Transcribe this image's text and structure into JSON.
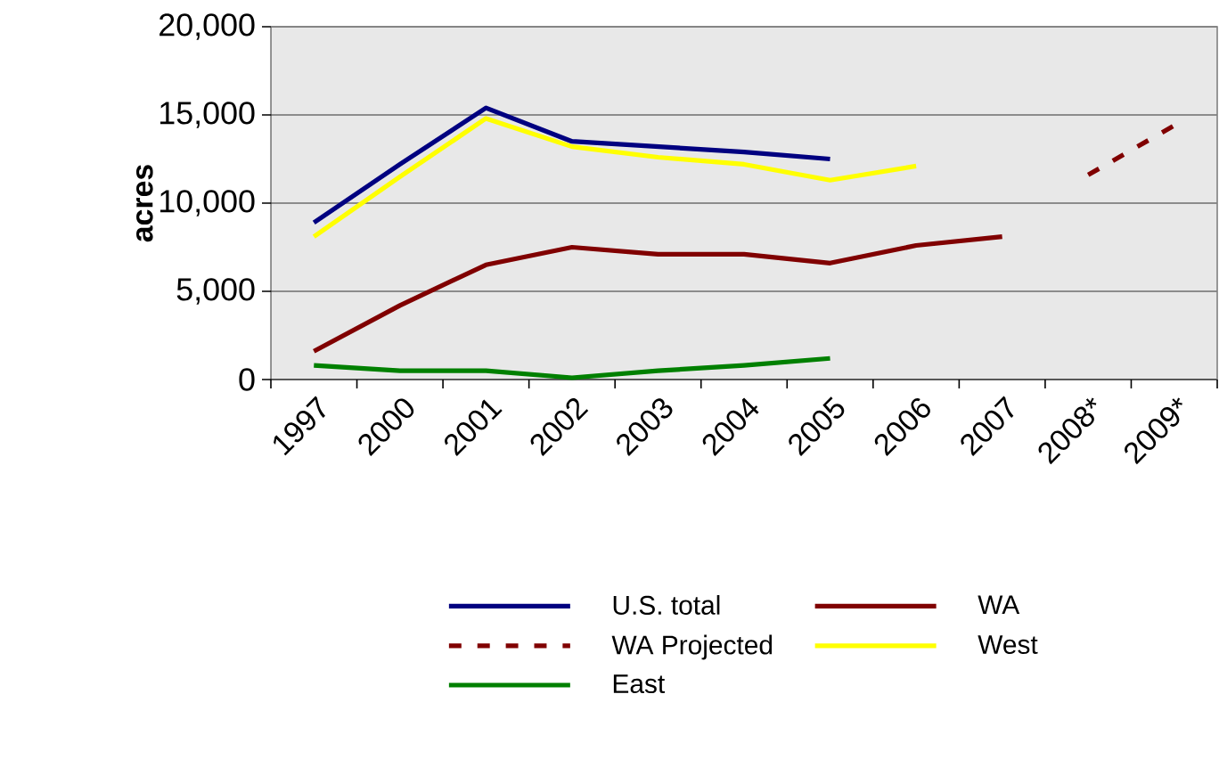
{
  "chart_data": {
    "type": "line",
    "ylabel": "acres",
    "categories": [
      "1997",
      "2000",
      "2001",
      "2002",
      "2003",
      "2004",
      "2005",
      "2006",
      "2007",
      "2008*",
      "2009*"
    ],
    "series": [
      {
        "name": "U.S. total",
        "color": "#000080",
        "values": [
          8900,
          12200,
          15400,
          13500,
          13200,
          12900,
          12500,
          null,
          null,
          null,
          null
        ]
      },
      {
        "name": "WA",
        "color": "#800000",
        "values": [
          1600,
          4200,
          6500,
          7500,
          7100,
          7100,
          6600,
          7600,
          8100,
          null,
          null
        ]
      },
      {
        "name": "WA Projected",
        "color": "#800000",
        "line_style": "dashed",
        "values": [
          null,
          null,
          null,
          null,
          null,
          null,
          null,
          null,
          null,
          11600,
          14400
        ]
      },
      {
        "name": "West",
        "color": "#ffff00",
        "values": [
          8100,
          11500,
          14800,
          13200,
          12600,
          12200,
          11300,
          12100,
          null,
          null,
          null
        ]
      },
      {
        "name": "East",
        "color": "#008000",
        "values": [
          800,
          500,
          500,
          100,
          500,
          800,
          1200,
          null,
          null,
          null,
          null
        ]
      }
    ],
    "ylim": [
      0,
      20000
    ],
    "yticks": [
      0,
      {
        "value": 5000,
        "label": "5,000"
      },
      {
        "value": 10000,
        "label": "10,000"
      },
      {
        "value": 15000,
        "label": "15,000"
      },
      {
        "value": 20000,
        "label": "20,000"
      }
    ],
    "grid": "y",
    "legend": "bottom",
    "marker": "none",
    "line_style": "solid"
  }
}
